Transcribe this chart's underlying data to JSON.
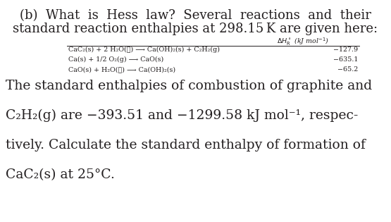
{
  "title_line1": "(b)  What  is  Hess  law?  Several  reactions  and  their",
  "title_line2": "standard reaction enthalpies at 298.15 K are given here:",
  "table_rows": [
    [
      "CaC₂(s) + 2 H₂O(ℓ) ⟶ Ca(OH)₂(s) + C₂H₂(g)",
      "−127.9"
    ],
    [
      "Ca(s) + 1/2 O₂(g) ⟶ CaO(s)",
      "−635.1"
    ],
    [
      "CaO(s) + H₂O(ℓ) ⟶ Ca(OH)₂(s)",
      "−65.2"
    ]
  ],
  "body_lines": [
    "The standard enthalpies of combustion of graphite and",
    "C₂H₂(g) are −393.51 and −1299.58 kJ mol⁻¹, respec-",
    "tively. Calculate the standard enthalpy of formation of",
    "CaC₂(s) at 25°C."
  ],
  "bg_color": "#ffffff",
  "text_color": "#231f20",
  "title_fontsize": 13.0,
  "table_fontsize": 6.8,
  "body_fontsize": 13.5
}
